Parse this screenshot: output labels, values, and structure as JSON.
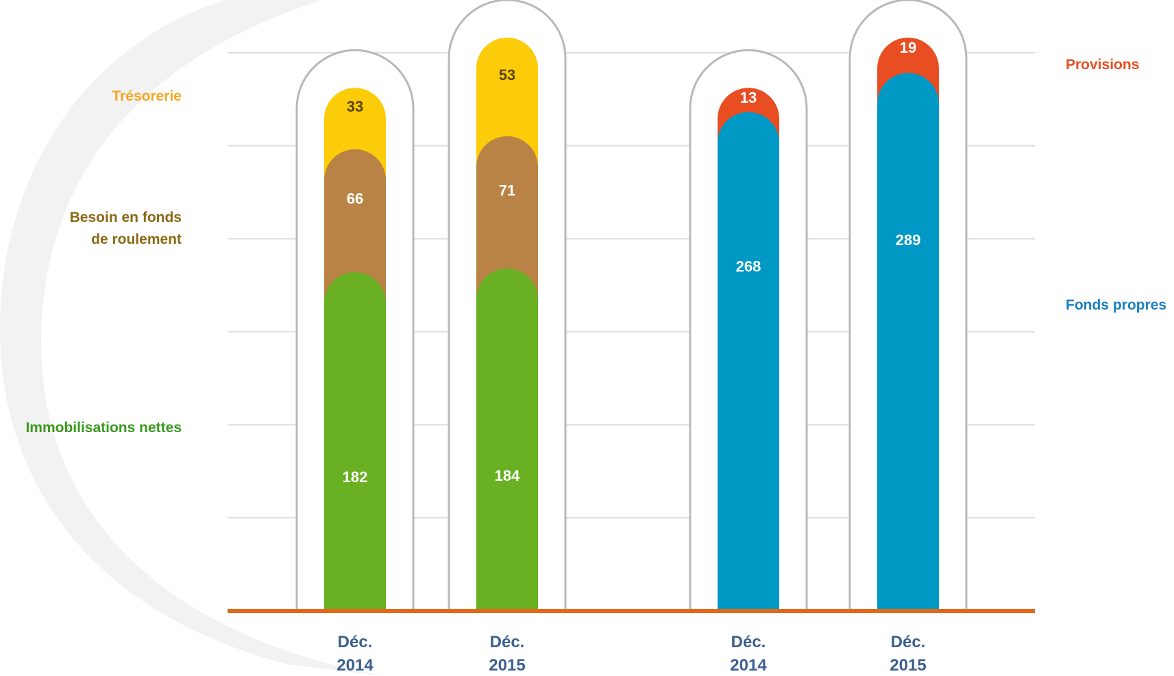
{
  "chart_data": [
    {
      "type": "bar",
      "stacked": true,
      "categories": [
        "Déc.\n2014",
        "Déc.\n2015"
      ],
      "series": [
        {
          "name": "Immobilisations nettes",
          "values": [
            182,
            184
          ],
          "color": "#6ab023"
        },
        {
          "name": "Besoin en fonds de roulement",
          "values": [
            66,
            71
          ],
          "color": "#b88344"
        },
        {
          "name": "Trésorerie",
          "values": [
            33,
            53
          ],
          "color": "#fccc0a"
        }
      ],
      "ylim": [
        0,
        330
      ],
      "grid": true,
      "legend": "left"
    },
    {
      "type": "bar",
      "stacked": true,
      "categories": [
        "Déc.\n2014",
        "Déc.\n2015"
      ],
      "series": [
        {
          "name": "Fonds propres",
          "values": [
            268,
            289
          ],
          "color": "#0099c5"
        },
        {
          "name": "Provisions",
          "values": [
            13,
            19
          ],
          "color": "#e84e22"
        }
      ],
      "ylim": [
        0,
        330
      ],
      "grid": true,
      "legend": "right"
    }
  ],
  "labels": {
    "tresorerie": "Trésorerie",
    "bfr_line1": "Besoin en fonds",
    "bfr_line2": "de roulement",
    "immobilisations": "Immobilisations nettes",
    "provisions": "Provisions",
    "fonds_propres": "Fonds propres"
  },
  "colors": {
    "tresorerie": "#f5a623",
    "bfr": "#8b6914",
    "immobilisations": "#3a9a1e",
    "provisions": "#e84e22",
    "fonds_propres": "#1a7fc1",
    "axis": "#e06a1a",
    "gridline": "#dddddd",
    "capsule": "#b8b8b8",
    "category_text": "#3c5f8f",
    "background_swoosh": "#f2f2f2"
  }
}
